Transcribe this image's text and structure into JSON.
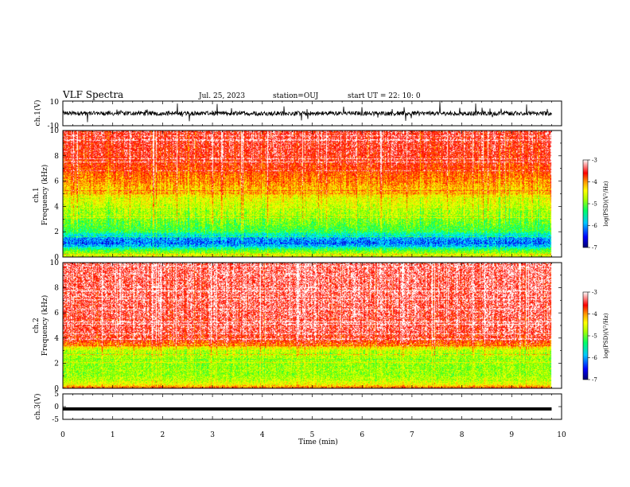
{
  "header": {
    "title": "VLF Spectra",
    "date": "Jul. 25, 2023",
    "station": "station=OUJ",
    "start": "start UT =  22: 10: 0"
  },
  "colors": {
    "colormap": [
      "#000070",
      "#0000ff",
      "#00a0ff",
      "#00ffff",
      "#00ff66",
      "#66ff00",
      "#ccff00",
      "#ffff00",
      "#ffaa00",
      "#ff3300",
      "#ff0000",
      "#ffffff"
    ]
  },
  "chart_data": [
    {
      "type": "line",
      "panel": "ch1-waveform",
      "ylabel": "ch.1(V)",
      "ylim": [
        -10,
        10
      ],
      "y_ticks": [
        "10",
        "-10"
      ],
      "baseline": 0,
      "xlim": [
        0,
        10
      ]
    },
    {
      "type": "heatmap",
      "panel": "ch1-spectrogram",
      "ylabel_line1": "ch.1",
      "ylabel_line2": "Frequency (kHz)",
      "ylim": [
        0,
        10
      ],
      "y_ticks": [
        "0",
        "2",
        "4",
        "6",
        "8",
        "10"
      ],
      "xlim": [
        0,
        9.8
      ],
      "band_profile_khz": [
        [
          0,
          -4.6
        ],
        [
          0.5,
          -5.3
        ],
        [
          1.0,
          -6.4
        ],
        [
          1.5,
          -6.2
        ],
        [
          2.0,
          -5.4
        ],
        [
          3.0,
          -5.1
        ],
        [
          4.0,
          -4.8
        ],
        [
          5.0,
          -4.4
        ],
        [
          6.0,
          -4.0
        ],
        [
          7.0,
          -3.7
        ],
        [
          8.0,
          -3.5
        ],
        [
          10.0,
          -3.4
        ]
      ],
      "colorbar": {
        "label": "log(PSD)(V²/Hz)",
        "ticks": [
          "-3",
          "-4",
          "-5",
          "-6",
          "-7"
        ],
        "range": [
          -7,
          -3
        ]
      }
    },
    {
      "type": "heatmap",
      "panel": "ch2-spectrogram",
      "ylabel_line1": "ch.2",
      "ylabel_line2": "Frequency (kHz)",
      "ylim": [
        0,
        10
      ],
      "y_ticks": [
        "0",
        "2",
        "4",
        "6",
        "8",
        "10"
      ],
      "xlim": [
        0,
        9.8
      ],
      "band_profile_khz": [
        [
          0,
          -3.8
        ],
        [
          0.3,
          -4.6
        ],
        [
          1.0,
          -5.0
        ],
        [
          2.0,
          -5.0
        ],
        [
          3.0,
          -4.8
        ],
        [
          3.6,
          -3.8
        ],
        [
          4.5,
          -3.4
        ],
        [
          10.0,
          -3.3
        ]
      ],
      "colorbar": {
        "label": "log(PSD)(V²/Hz)",
        "ticks": [
          "-3",
          "-4",
          "-5",
          "-6",
          "-7"
        ],
        "range": [
          -7,
          -3
        ]
      }
    },
    {
      "type": "line",
      "panel": "ch3-waveform",
      "ylabel": "ch.3(V)",
      "ylim": [
        -5,
        5
      ],
      "y_ticks": [
        "5",
        "0",
        "-5"
      ],
      "value": -0.9,
      "xlim": [
        0,
        9.8
      ]
    }
  ],
  "x_axis": {
    "label": "Time (min)",
    "ticks": [
      "0",
      "1",
      "2",
      "3",
      "4",
      "5",
      "6",
      "7",
      "8",
      "9",
      "10"
    ],
    "range": [
      0,
      10
    ]
  }
}
